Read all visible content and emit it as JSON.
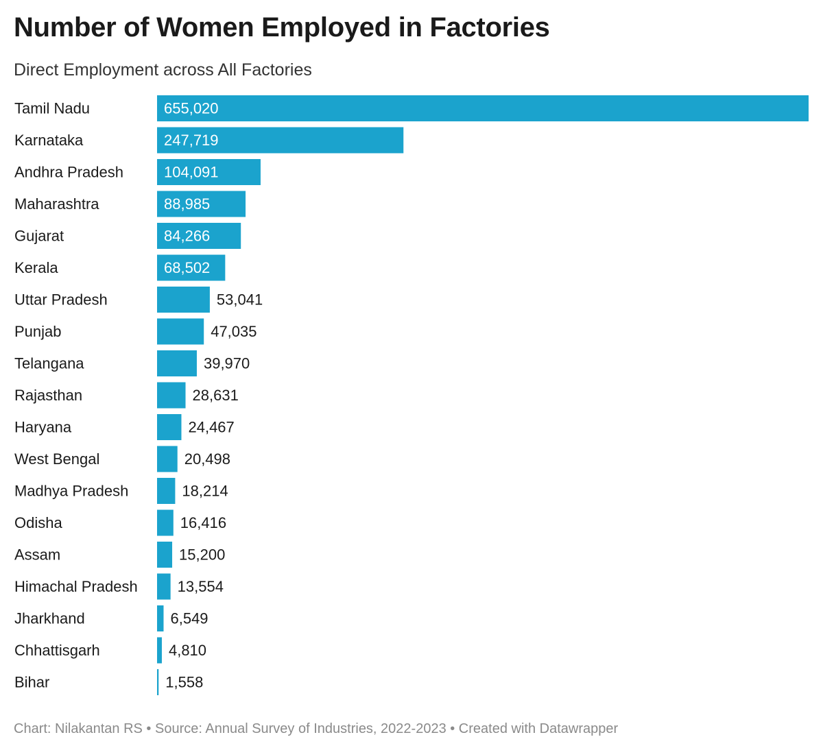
{
  "header": {
    "title": "Number of Women Employed in Factories",
    "subtitle": "Direct Employment across All Factories"
  },
  "footer": {
    "text": "Chart: Nilakantan RS • Source: Annual Survey of Industries, 2022-2023 • Created with Datawrapper"
  },
  "chart_data": {
    "type": "bar",
    "orientation": "horizontal",
    "title": "Number of Women Employed in Factories",
    "subtitle": "Direct Employment across All Factories",
    "categories": [
      "Tamil Nadu",
      "Karnataka",
      "Andhra Pradesh",
      "Maharashtra",
      "Gujarat",
      "Kerala",
      "Uttar Pradesh",
      "Punjab",
      "Telangana",
      "Rajasthan",
      "Haryana",
      "West Bengal",
      "Madhya Pradesh",
      "Odisha",
      "Assam",
      "Himachal Pradesh",
      "Jharkhand",
      "Chhattisgarh",
      "Bihar"
    ],
    "values": [
      655020,
      247719,
      104091,
      88985,
      84266,
      68502,
      53041,
      47035,
      39970,
      28631,
      24467,
      20498,
      18214,
      16416,
      15200,
      13554,
      6549,
      4810,
      1558
    ],
    "value_labels": [
      "655,020",
      "247,719",
      "104,091",
      "88,985",
      "84,266",
      "68,502",
      "53,041",
      "47,035",
      "39,970",
      "28,631",
      "24,467",
      "20,498",
      "18,214",
      "16,416",
      "15,200",
      "13,554",
      "6,549",
      "4,810",
      "1,558"
    ],
    "xlim": [
      0,
      655020
    ],
    "grid": false,
    "legend": "none",
    "bar_color": "#1ba3cd",
    "label_inside_color": "#ffffff",
    "label_outside_color": "#1a1a1a",
    "category_label_color": "#1a1a1a"
  }
}
